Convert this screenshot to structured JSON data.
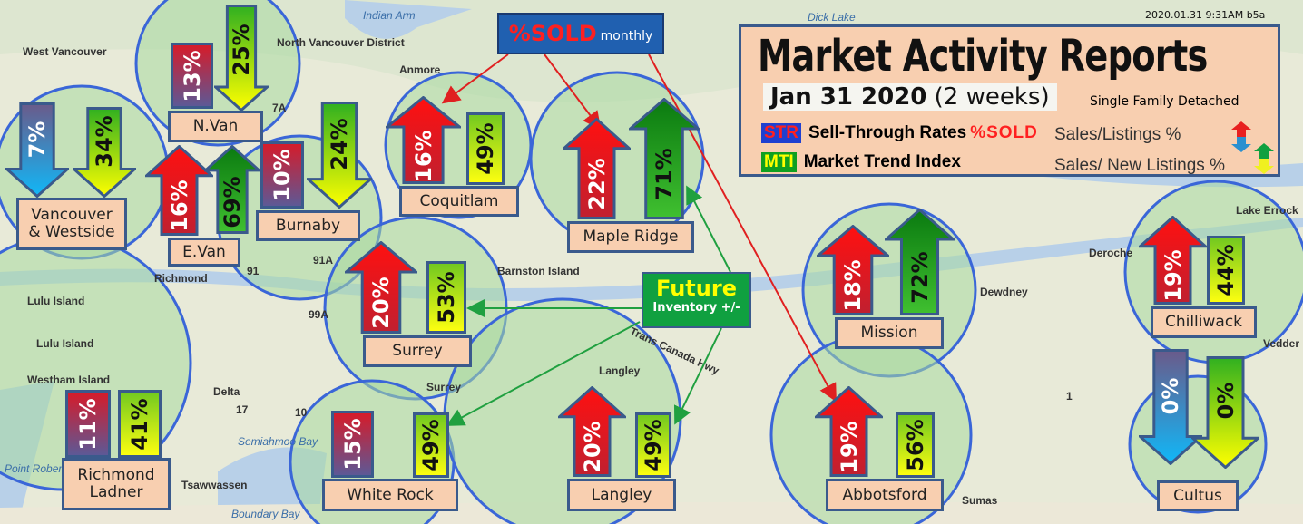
{
  "timestamp": "2020.01.31  9:31AM b5a",
  "header": {
    "title": "Market  Activity Reports",
    "date_bold": "Jan 31 2020",
    "date_note": "(2 weeks)",
    "segment": "Single Family Detached",
    "legend": [
      {
        "badge": "STR",
        "badge_bg": "#2040d0",
        "badge_color": "#ff2020",
        "label": "Sell-Through Rates",
        "suffix": "%SOLD",
        "right": "Sales/Listings %",
        "icon": "up-red-down-blue-arrow-icon"
      },
      {
        "badge": "MTI",
        "badge_bg": "#10a020",
        "badge_color": "#ffff00",
        "label": "Market Trend Index",
        "suffix": "",
        "right": "Sales/ New Listings %",
        "icon": "up-green-down-yellow-arrow-icon"
      }
    ]
  },
  "callouts": {
    "sold": {
      "big": "%SOLD",
      "small": "monthly",
      "line_color": "#e02020"
    },
    "future": {
      "big": "Future",
      "small": "Inventory +/-",
      "line_color": "#20a040"
    }
  },
  "map_labels": [
    "West Vancouver",
    "North Vancouver District",
    "Indian Arm",
    "Dick Lake",
    "Anmore",
    "Richmond",
    "Lulu Island",
    "Lulu Island",
    "Westham Island",
    "Delta",
    "Tsawwassen",
    "Boundary Bay",
    "Semiahmoo Bay",
    "Surrey",
    "Langley",
    "Barnston Island",
    "Trans Canada Hwy",
    "Dewdney",
    "Deroche",
    "Lake Errock",
    "Vedder",
    "Sumas",
    "Point Roberts",
    "7A",
    "91",
    "91A",
    "99A",
    "17",
    "10",
    "1"
  ],
  "regions": [
    {
      "name": "Vancouver\n& Westside",
      "str": {
        "value": "7%",
        "dir": "down"
      },
      "mti": {
        "value": "34%",
        "dir": "down"
      }
    },
    {
      "name": "N.Van",
      "str": {
        "value": "13%",
        "dir": "flat"
      },
      "mti": {
        "value": "25%",
        "dir": "down"
      }
    },
    {
      "name": "E.Van",
      "str": {
        "value": "16%",
        "dir": "up"
      },
      "mti": {
        "value": "69%",
        "dir": "up"
      }
    },
    {
      "name": "Burnaby",
      "str": {
        "value": "10%",
        "dir": "flat"
      },
      "mti": {
        "value": "24%",
        "dir": "down"
      }
    },
    {
      "name": "Coquitlam",
      "str": {
        "value": "16%",
        "dir": "up"
      },
      "mti": {
        "value": "49%",
        "dir": "flat"
      }
    },
    {
      "name": "Maple Ridge",
      "str": {
        "value": "22%",
        "dir": "up"
      },
      "mti": {
        "value": "71%",
        "dir": "up"
      }
    },
    {
      "name": "Surrey",
      "str": {
        "value": "20%",
        "dir": "up"
      },
      "mti": {
        "value": "53%",
        "dir": "flat"
      }
    },
    {
      "name": "Mission",
      "str": {
        "value": "18%",
        "dir": "up"
      },
      "mti": {
        "value": "72%",
        "dir": "up"
      }
    },
    {
      "name": "Chilliwack",
      "str": {
        "value": "19%",
        "dir": "up"
      },
      "mti": {
        "value": "44%",
        "dir": "flat"
      }
    },
    {
      "name": "Richmond\nLadner",
      "str": {
        "value": "11%",
        "dir": "flat"
      },
      "mti": {
        "value": "41%",
        "dir": "flat"
      }
    },
    {
      "name": "White Rock",
      "str": {
        "value": "15%",
        "dir": "flat"
      },
      "mti": {
        "value": "49%",
        "dir": "flat"
      }
    },
    {
      "name": "Langley",
      "str": {
        "value": "20%",
        "dir": "up"
      },
      "mti": {
        "value": "49%",
        "dir": "flat"
      }
    },
    {
      "name": "Abbotsford",
      "str": {
        "value": "19%",
        "dir": "up"
      },
      "mti": {
        "value": "56%",
        "dir": "flat"
      }
    },
    {
      "name": "Cultus",
      "str": {
        "value": "0%",
        "dir": "down"
      },
      "mti": {
        "value": "0%",
        "dir": "down"
      }
    }
  ],
  "colors": {
    "outline": "#3a5a8c",
    "label_bg": "#f8cfb0",
    "circle": "#3a66d8",
    "circle_fill": "#a8d8a0"
  }
}
